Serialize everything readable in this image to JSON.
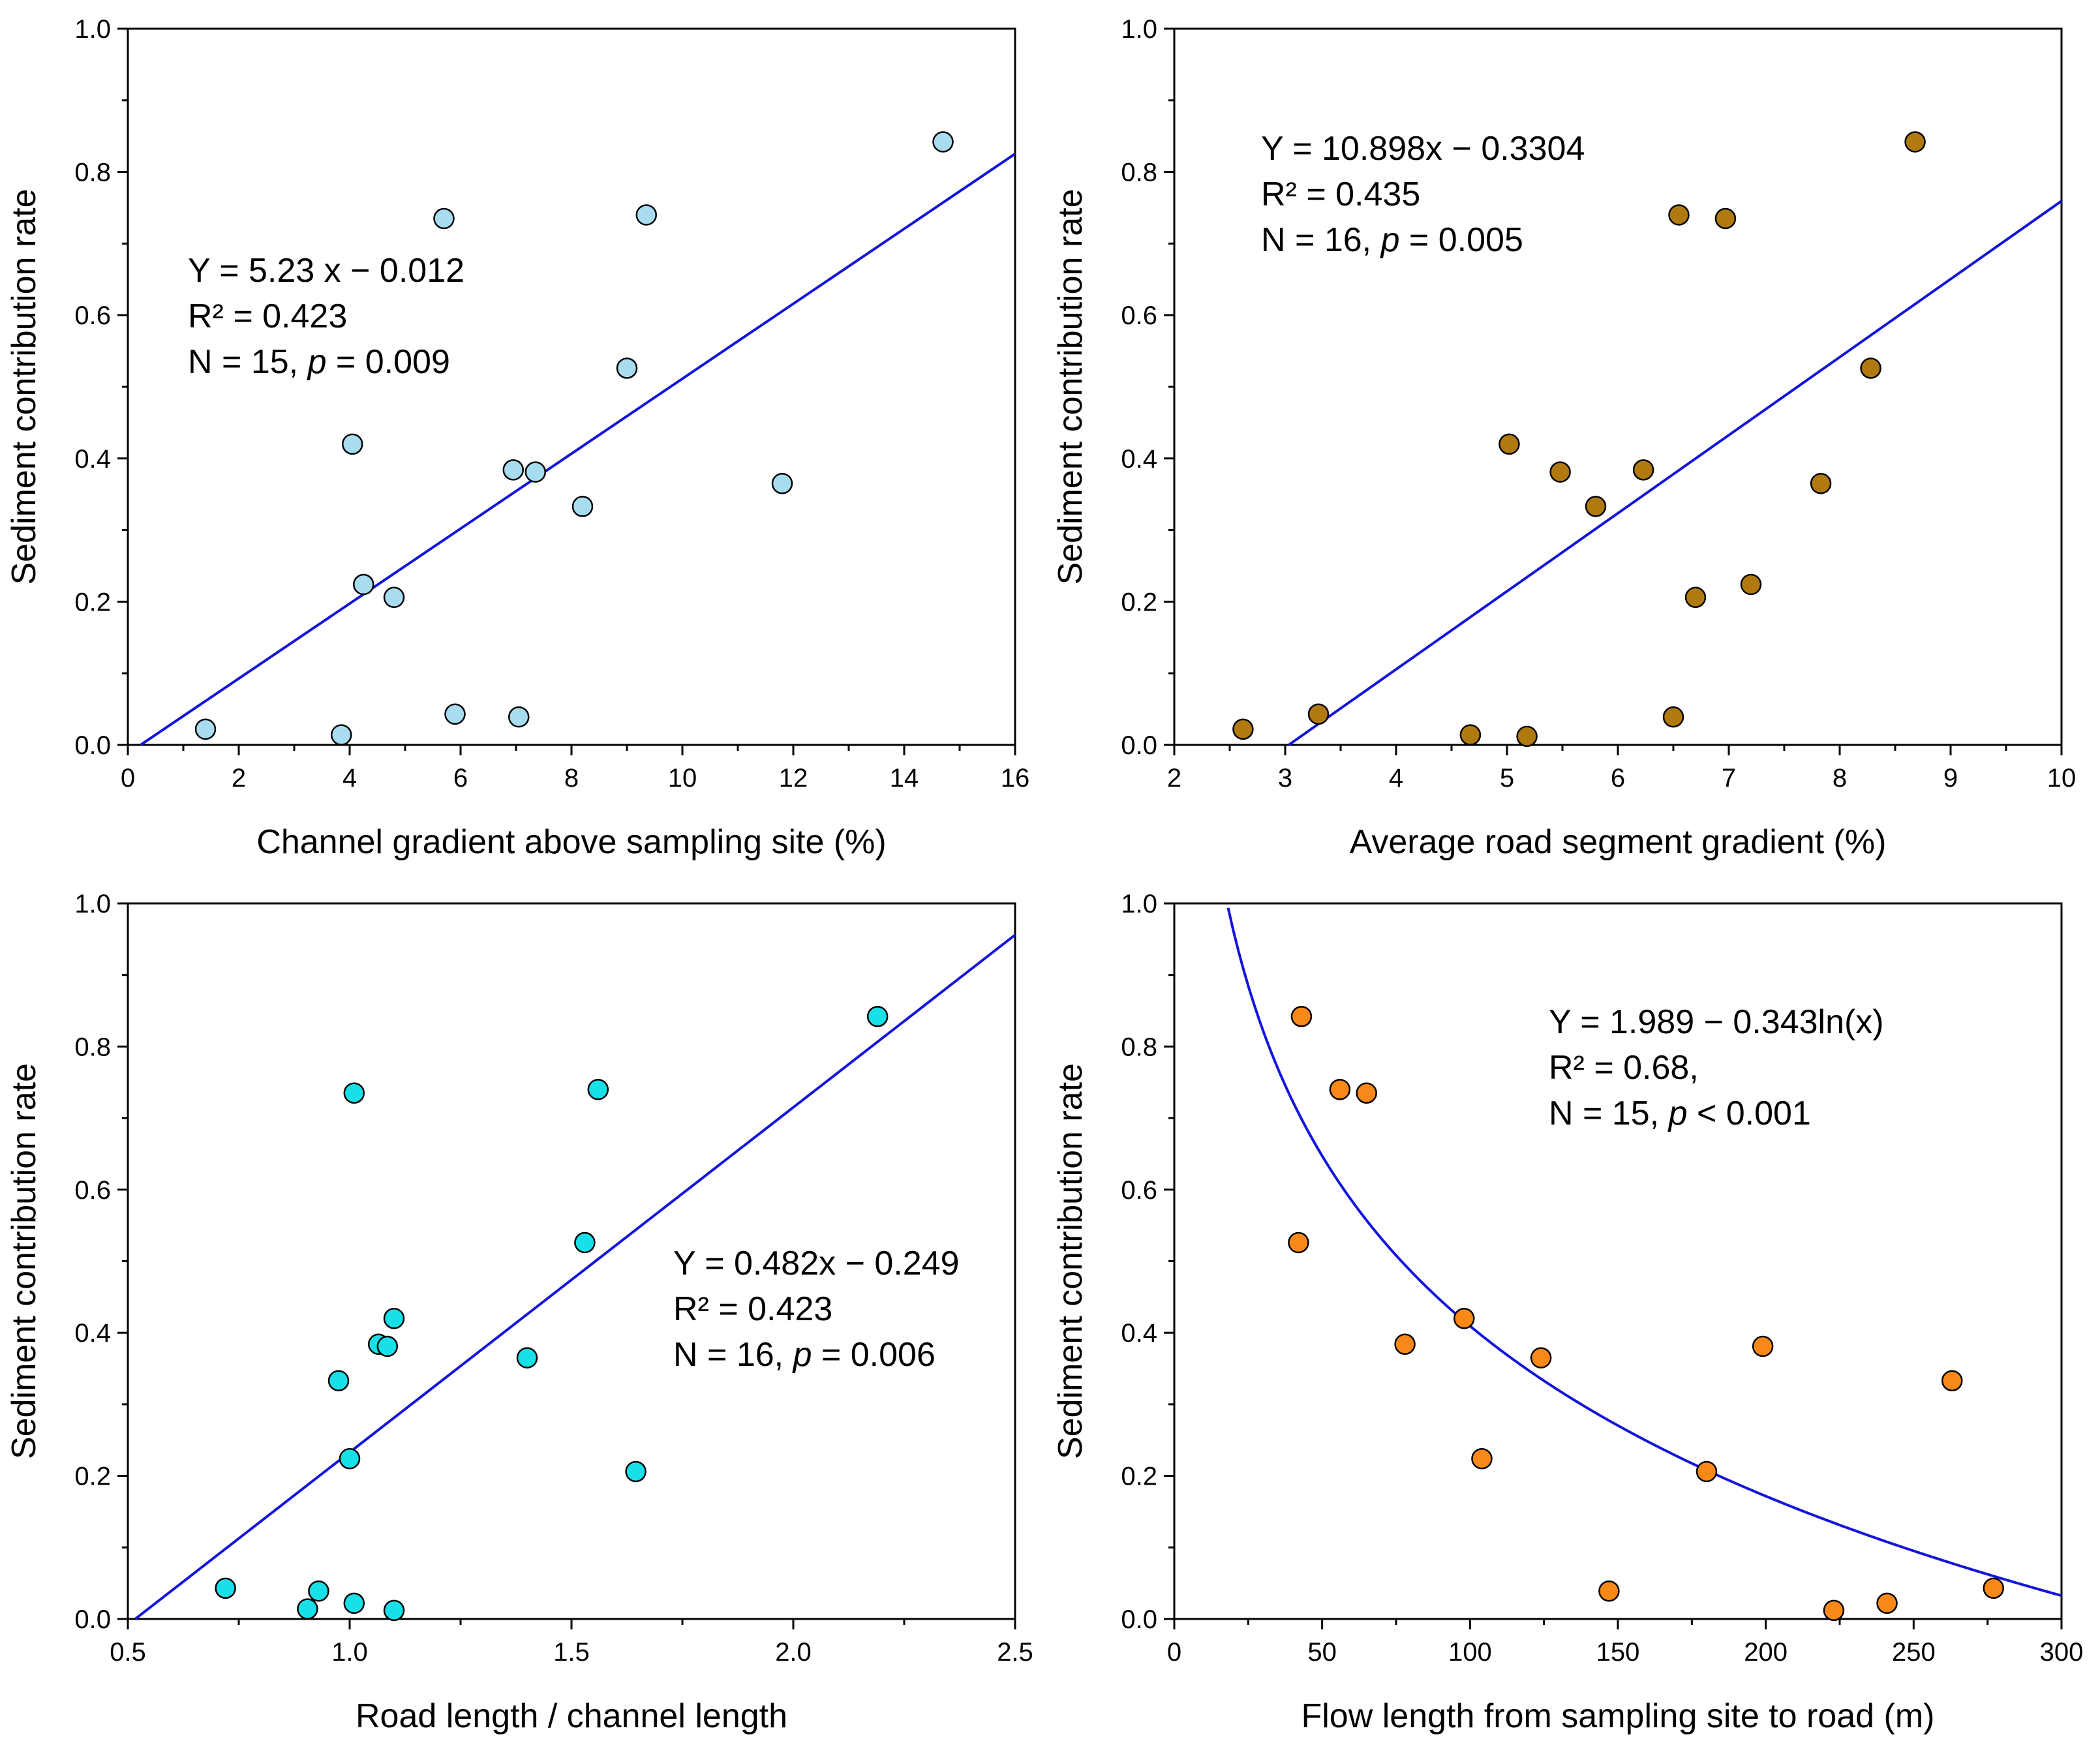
{
  "chart_data": [
    {
      "type": "scatter",
      "id": "a",
      "xlabel": "Channel gradient above sampling site (%)",
      "ylabel": "Sediment contribution rate",
      "xlim": [
        0,
        16
      ],
      "ylim": [
        0,
        1.0
      ],
      "xticks": [
        0,
        2,
        4,
        6,
        8,
        10,
        12,
        14,
        16
      ],
      "xtick_labels": [
        "0",
        "2",
        "4",
        "6",
        "8",
        "10",
        "12",
        "14",
        "16"
      ],
      "yticks": [
        0,
        0.2,
        0.4,
        0.6,
        0.8,
        1.0
      ],
      "ytick_labels": [
        "0.0",
        "0.2",
        "0.4",
        "0.6",
        "0.8",
        "1.0"
      ],
      "point_color": "#a8dcf0",
      "line_color": "#1414dc",
      "fit": {
        "kind": "linear",
        "slope": 0.05233,
        "intercept": -0.012,
        "x_from": 0.23,
        "x_to": 16
      },
      "annotation": [
        [
          {
            "text": "Y = 5.23 x − 0.012"
          }
        ],
        [
          {
            "text": "R² = 0.423"
          }
        ],
        [
          {
            "text": "N = 15, "
          },
          {
            "text": "p",
            "italic": true
          },
          {
            "text": " = 0.009"
          }
        ]
      ],
      "points": [
        {
          "x": 1.4,
          "y": 0.022
        },
        {
          "x": 3.85,
          "y": 0.014
        },
        {
          "x": 4.05,
          "y": 0.42
        },
        {
          "x": 4.25,
          "y": 0.224
        },
        {
          "x": 4.8,
          "y": 0.206
        },
        {
          "x": 5.7,
          "y": 0.735
        },
        {
          "x": 5.9,
          "y": 0.043
        },
        {
          "x": 6.95,
          "y": 0.384
        },
        {
          "x": 7.05,
          "y": 0.039
        },
        {
          "x": 7.35,
          "y": 0.381
        },
        {
          "x": 8.2,
          "y": 0.333
        },
        {
          "x": 9.0,
          "y": 0.526
        },
        {
          "x": 9.35,
          "y": 0.74
        },
        {
          "x": 11.8,
          "y": 0.365
        },
        {
          "x": 14.7,
          "y": 0.842
        }
      ]
    },
    {
      "type": "scatter",
      "id": "b",
      "xlabel": "Average road segment gradient (%)",
      "ylabel": "Sediment contribution rate",
      "xlim": [
        2,
        10
      ],
      "ylim": [
        0,
        1.0
      ],
      "xticks": [
        2,
        3,
        4,
        5,
        6,
        7,
        8,
        9,
        10
      ],
      "xtick_labels": [
        "2",
        "3",
        "4",
        "5",
        "6",
        "7",
        "8",
        "9",
        "10"
      ],
      "yticks": [
        0,
        0.2,
        0.4,
        0.6,
        0.8,
        1.0
      ],
      "ytick_labels": [
        "0.0",
        "0.2",
        "0.4",
        "0.6",
        "0.8",
        "1.0"
      ],
      "point_color": "#b07a10",
      "line_color": "#1414dc",
      "fit": {
        "kind": "linear",
        "slope": 0.10898,
        "intercept": -0.3304,
        "x_from": 3.032,
        "x_to": 10
      },
      "annotation": [
        [
          {
            "text": "Y = 10.898x − 0.3304"
          }
        ],
        [
          {
            "text": "R² = 0.435"
          }
        ],
        [
          {
            "text": "N = 16, "
          },
          {
            "text": "p",
            "italic": true
          },
          {
            "text": " = 0.005"
          }
        ]
      ],
      "points": [
        {
          "x": 2.62,
          "y": 0.022
        },
        {
          "x": 3.3,
          "y": 0.043
        },
        {
          "x": 4.67,
          "y": 0.014
        },
        {
          "x": 5.02,
          "y": 0.42
        },
        {
          "x": 5.18,
          "y": 0.012
        },
        {
          "x": 5.48,
          "y": 0.381
        },
        {
          "x": 5.8,
          "y": 0.333
        },
        {
          "x": 6.23,
          "y": 0.384
        },
        {
          "x": 6.5,
          "y": 0.039
        },
        {
          "x": 6.55,
          "y": 0.74
        },
        {
          "x": 6.7,
          "y": 0.206
        },
        {
          "x": 6.97,
          "y": 0.735
        },
        {
          "x": 7.2,
          "y": 0.224
        },
        {
          "x": 7.83,
          "y": 0.365
        },
        {
          "x": 8.28,
          "y": 0.526
        },
        {
          "x": 8.68,
          "y": 0.842
        }
      ]
    },
    {
      "type": "scatter",
      "id": "c",
      "xlabel": "Road length / channel length",
      "ylabel": "Sediment contribution rate",
      "xlim": [
        0.5,
        2.5
      ],
      "ylim": [
        0,
        1.0
      ],
      "xticks": [
        0.5,
        1.0,
        1.5,
        2.0,
        2.5
      ],
      "xtick_labels": [
        "0.5",
        "1.0",
        "1.5",
        "2.0",
        "2.5"
      ],
      "yticks": [
        0,
        0.2,
        0.4,
        0.6,
        0.8,
        1.0
      ],
      "ytick_labels": [
        "0.0",
        "0.2",
        "0.4",
        "0.6",
        "0.8",
        "1.0"
      ],
      "point_color": "#18e0e8",
      "line_color": "#1414dc",
      "fit": {
        "kind": "linear",
        "slope": 0.482,
        "intercept": -0.249,
        "x_from": 0.517,
        "x_to": 2.5
      },
      "annotation": [
        [
          {
            "text": "Y = 0.482x − 0.249"
          }
        ],
        [
          {
            "text": "R² = 0.423"
          }
        ],
        [
          {
            "text": "N = 16, "
          },
          {
            "text": "p",
            "italic": true
          },
          {
            "text": " = 0.006"
          }
        ]
      ],
      "points": [
        {
          "x": 0.72,
          "y": 0.043
        },
        {
          "x": 0.905,
          "y": 0.014
        },
        {
          "x": 0.93,
          "y": 0.039
        },
        {
          "x": 0.975,
          "y": 0.333
        },
        {
          "x": 1.0,
          "y": 0.224
        },
        {
          "x": 1.01,
          "y": 0.735
        },
        {
          "x": 1.01,
          "y": 0.022
        },
        {
          "x": 1.065,
          "y": 0.384
        },
        {
          "x": 1.085,
          "y": 0.381
        },
        {
          "x": 1.1,
          "y": 0.42
        },
        {
          "x": 1.1,
          "y": 0.012
        },
        {
          "x": 1.4,
          "y": 0.365
        },
        {
          "x": 1.53,
          "y": 0.526
        },
        {
          "x": 1.56,
          "y": 0.74
        },
        {
          "x": 1.645,
          "y": 0.206
        },
        {
          "x": 2.19,
          "y": 0.842
        }
      ]
    },
    {
      "type": "scatter",
      "id": "d",
      "xlabel": "Flow length from sampling site to road (m)",
      "ylabel": "Sediment contribution rate",
      "xlim": [
        0,
        300
      ],
      "ylim": [
        0,
        1.0
      ],
      "xticks": [
        0,
        50,
        100,
        150,
        200,
        250,
        300
      ],
      "xtick_labels": [
        "0",
        "50",
        "100",
        "150",
        "200",
        "250",
        "300"
      ],
      "yticks": [
        0,
        0.2,
        0.4,
        0.6,
        0.8,
        1.0
      ],
      "ytick_labels": [
        "0.0",
        "0.2",
        "0.4",
        "0.6",
        "0.8",
        "1.0"
      ],
      "point_color": "#f88818",
      "line_color": "#1414dc",
      "fit": {
        "kind": "log",
        "a": 1.989,
        "b": -0.343,
        "x_from": 18.2,
        "x_to": 300
      },
      "annotation": [
        [
          {
            "text": "Y = 1.989 − 0.343ln(x)"
          }
        ],
        [
          {
            "text": "R² = 0.68,"
          }
        ],
        [
          {
            "text": "N = 15, "
          },
          {
            "text": "p",
            "italic": true
          },
          {
            "text": " < 0.001"
          }
        ]
      ],
      "points": [
        {
          "x": 42,
          "y": 0.526
        },
        {
          "x": 43,
          "y": 0.842
        },
        {
          "x": 56,
          "y": 0.74
        },
        {
          "x": 65,
          "y": 0.735
        },
        {
          "x": 78,
          "y": 0.384
        },
        {
          "x": 98,
          "y": 0.42
        },
        {
          "x": 104,
          "y": 0.224
        },
        {
          "x": 124,
          "y": 0.365
        },
        {
          "x": 147,
          "y": 0.039
        },
        {
          "x": 180,
          "y": 0.206
        },
        {
          "x": 199,
          "y": 0.381
        },
        {
          "x": 223,
          "y": 0.012
        },
        {
          "x": 241,
          "y": 0.022
        },
        {
          "x": 263,
          "y": 0.333
        },
        {
          "x": 277,
          "y": 0.043
        }
      ]
    }
  ]
}
